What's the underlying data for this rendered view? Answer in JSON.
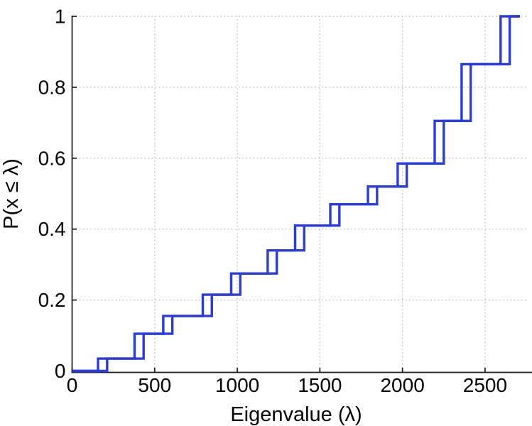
{
  "chart_data": {
    "type": "line",
    "subtype": "empirical-cdf-staircase",
    "title": "",
    "xlabel": "Eigenvalue (λ)",
    "ylabel": "P(x ≤ λ)",
    "xlim": [
      0,
      2711
    ],
    "ylim": [
      0,
      1
    ],
    "xticks": [
      0,
      500,
      1000,
      1500,
      2000,
      2500
    ],
    "xticklabels": [
      "0",
      "500",
      "1000",
      "1500",
      "2000",
      "2500"
    ],
    "yticks": [
      0,
      0.2,
      0.4,
      0.6,
      0.8,
      1
    ],
    "yticklabels": [
      "0",
      "0.2",
      "0.4",
      "0.6",
      "0.8",
      "1"
    ],
    "grid": true,
    "grid_style": "dotted",
    "legend": "none",
    "colors": {
      "line": "#2B3BE2",
      "axis": "#1a1a1a",
      "grid": "#b3b3b3",
      "background": "#ffffff"
    },
    "line_width": 3.4,
    "levels": [
      0.035,
      0.105,
      0.155,
      0.215,
      0.275,
      0.34,
      0.41,
      0.47,
      0.52,
      0.585,
      0.705,
      0.865,
      1.0
    ],
    "series": [
      {
        "name": "cdf-step-lower-edge",
        "jump_x": [
          157,
          378,
          552,
          791,
          963,
          1184,
          1350,
          1563,
          1791,
          1971,
          2195,
          2358,
          2594
        ]
      },
      {
        "name": "cdf-step-upper-edge",
        "jump_x": [
          212,
          433,
          607,
          846,
          1018,
          1239,
          1405,
          1618,
          1846,
          2026,
          2250,
          2413,
          2649
        ]
      }
    ],
    "annotations": []
  }
}
